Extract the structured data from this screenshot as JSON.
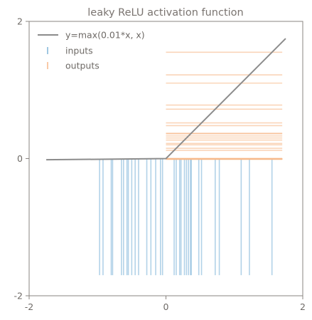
{
  "chart_data": {
    "type": "line",
    "title": "leaky ReLU activation function",
    "xlabel": "",
    "ylabel": "",
    "xlim": [
      -2,
      2
    ],
    "ylim": [
      -2,
      2
    ],
    "xticks": [
      "-2",
      "0",
      "2"
    ],
    "yticks": [
      "-2",
      "0",
      "2"
    ],
    "grid": false,
    "legend_position": "top-left",
    "legend": [
      {
        "label": "y=max(0.01*x, x)",
        "marker": "line",
        "color": "#8c8c8c"
      },
      {
        "label": "inputs",
        "marker": "vertical-tick",
        "color": "#7fb4d9"
      },
      {
        "label": "outputs",
        "marker": "vertical-tick",
        "color": "#f7b98a"
      }
    ],
    "curve": {
      "name": "y=max(0.01*x, x)",
      "x": [
        -1.75,
        0,
        1.75
      ],
      "y": [
        -0.0175,
        0,
        1.75
      ],
      "color": "#8c8c8c"
    },
    "inputs": {
      "color": "#7fb4d9",
      "rug_y_range": [
        -1.7,
        0
      ],
      "values": [
        -0.97,
        -0.92,
        -0.8,
        -0.78,
        -0.65,
        -0.62,
        -0.57,
        -0.55,
        -0.5,
        -0.45,
        -0.4,
        -0.28,
        -0.22,
        -0.15,
        -0.08,
        -0.05,
        0.12,
        0.15,
        0.2,
        0.22,
        0.27,
        0.3,
        0.33,
        0.36,
        0.37,
        0.48,
        0.52,
        0.72,
        0.78,
        1.1,
        1.22,
        1.55
      ]
    },
    "outputs": {
      "color": "#f7b98a",
      "rug_x_range": [
        0,
        1.7
      ],
      "values": [
        -0.0097,
        -0.0092,
        -0.008,
        -0.0078,
        -0.0065,
        -0.0062,
        -0.0057,
        -0.0055,
        -0.005,
        -0.0045,
        -0.004,
        -0.0028,
        -0.0022,
        -0.0015,
        -0.0008,
        -0.0005,
        0.12,
        0.15,
        0.2,
        0.22,
        0.27,
        0.3,
        0.33,
        0.36,
        0.37,
        0.48,
        0.52,
        0.72,
        0.78,
        1.1,
        1.22,
        1.55
      ]
    }
  }
}
